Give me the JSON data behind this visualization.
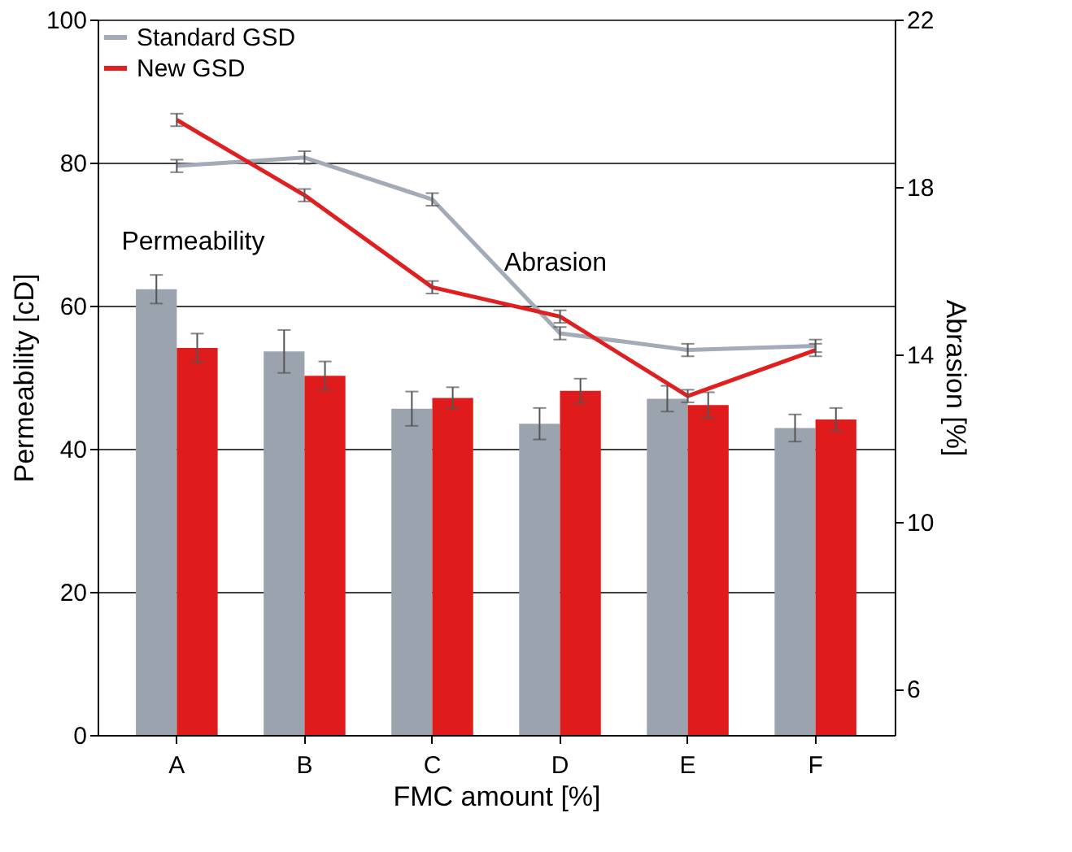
{
  "chart_data": {
    "type": "bar",
    "xlabel": "FMC amount [%]",
    "ylabel": "Permeability [cD]",
    "y2label": "Abrasion [%]",
    "categories": [
      "A",
      "B",
      "C",
      "D",
      "E",
      "F"
    ],
    "series": [
      {
        "color": "#9aa3ae",
        "values": [
          62.3,
          53.6,
          45.6,
          43.5,
          47.0,
          42.9
        ],
        "errors": [
          2,
          3,
          2.4,
          2.2,
          1.8,
          1.9
        ]
      },
      {
        "color": "#e01b1b",
        "values": [
          54.1,
          50.2,
          47.1,
          48.1,
          46.1,
          44.1
        ],
        "errors": [
          2,
          2,
          1.5,
          1.7,
          1.8,
          1.6
        ]
      },
      {
        "type": "line",
        "axis": "y2",
        "name": "Standard GSD",
        "color": "#a3abb6",
        "values": [
          18.5,
          18.7,
          17.7,
          14.5,
          14.1,
          14.2
        ],
        "errors": [
          0.15,
          0.15,
          0.15,
          0.15,
          0.15,
          0.15
        ]
      },
      {
        "type": "line",
        "axis": "y2",
        "name": "New GSD",
        "color": "#e02020",
        "values": [
          19.6,
          17.8,
          15.6,
          14.9,
          13.0,
          14.1
        ],
        "errors": [
          0.15,
          0.15,
          0.15,
          0.15,
          0.15,
          0.15
        ]
      }
    ],
    "ylim": [
      0,
      100
    ],
    "yticks": [
      0,
      20,
      40,
      60,
      80,
      100
    ],
    "y2lim": [
      4.9,
      22
    ],
    "y2ticks": [
      6,
      10,
      14,
      18,
      22
    ],
    "grid": "y",
    "legend": "top left",
    "annotations": [
      "Permeability",
      "Abrasion"
    ]
  }
}
